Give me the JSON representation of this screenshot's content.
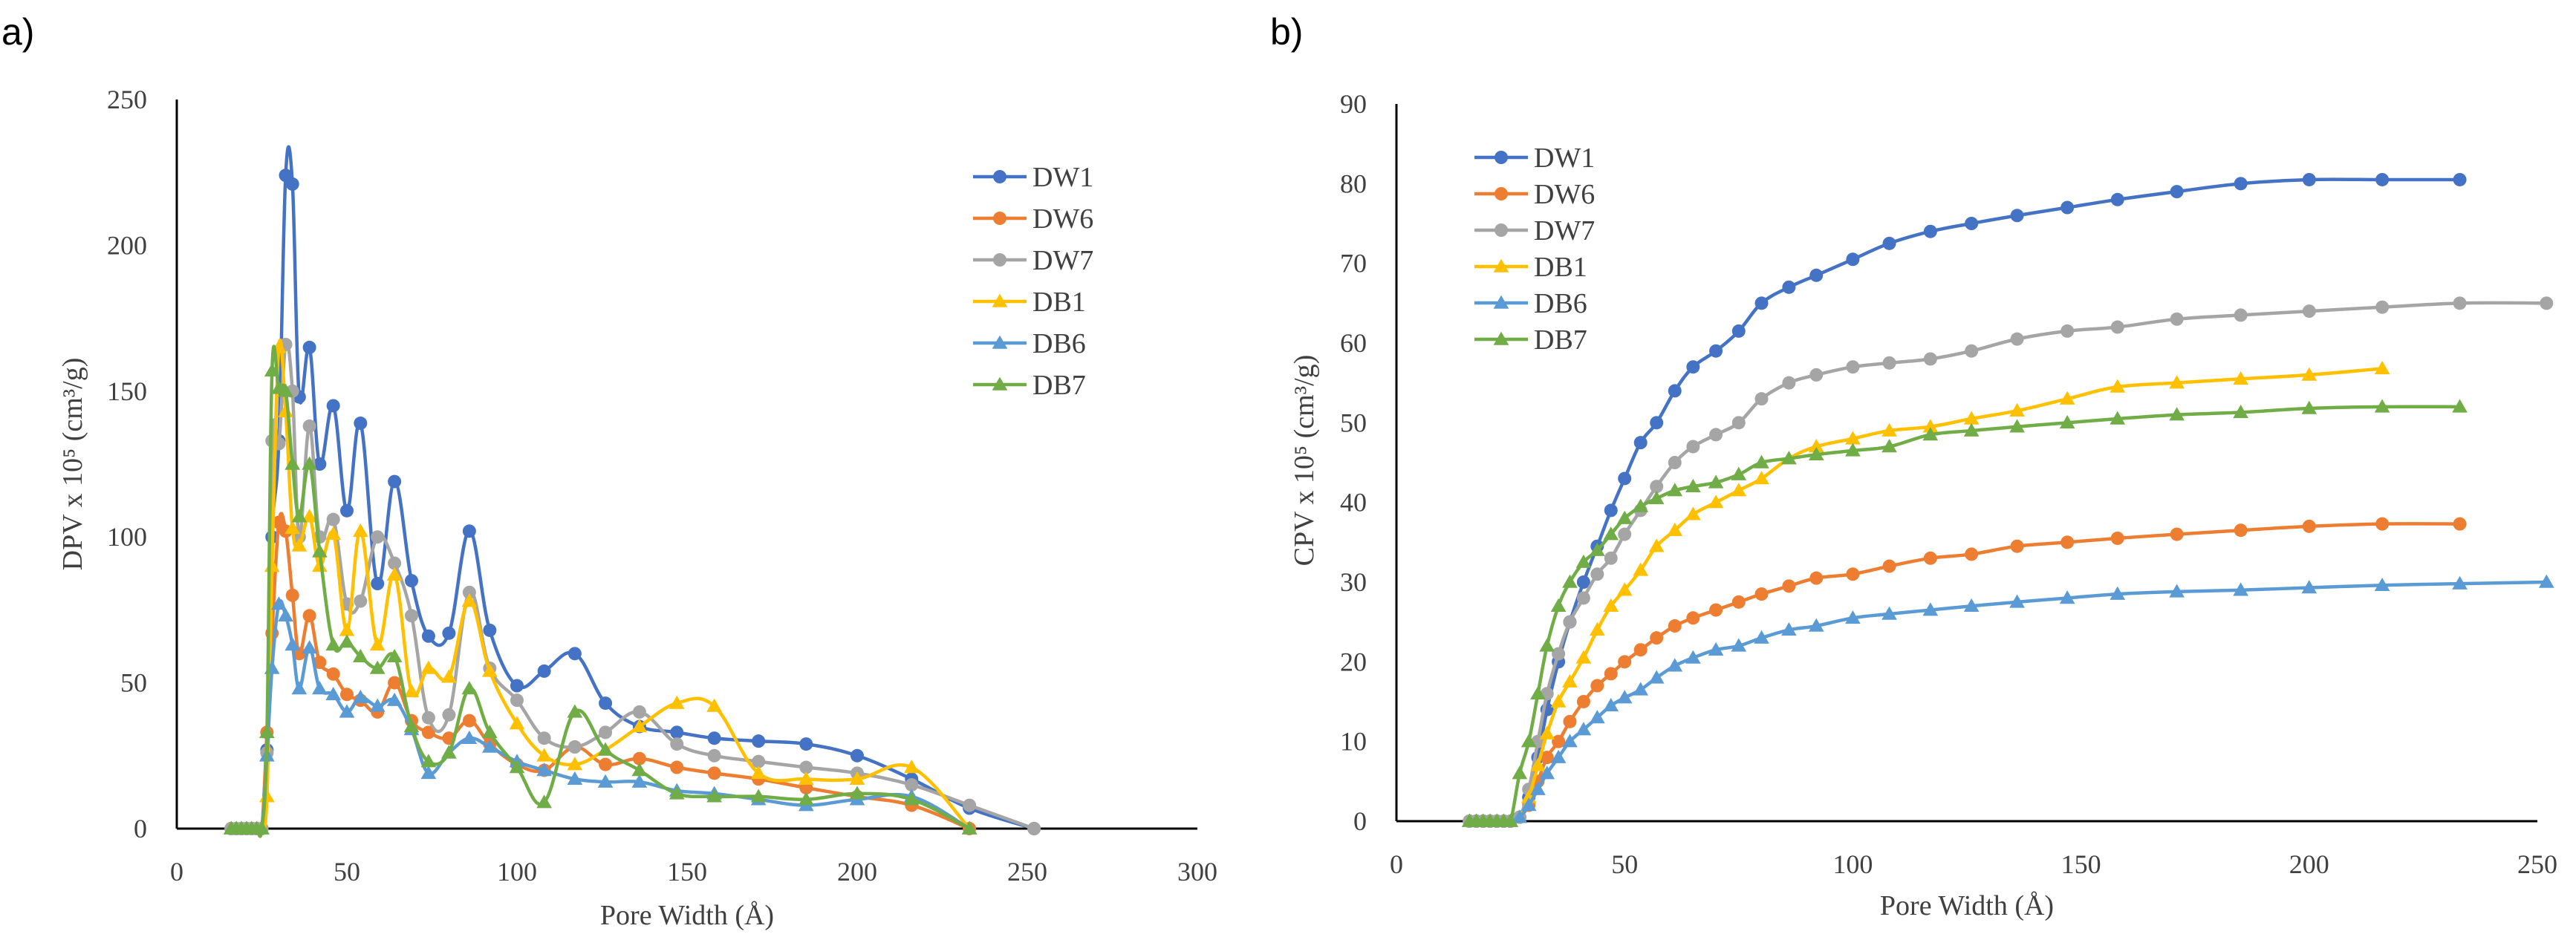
{
  "chart_data": [
    {
      "panel_label": "a)",
      "type": "line",
      "xlabel": "Pore Width (Å)",
      "ylabel": "DPV x 10⁵ (cm³/g)",
      "xlim": [
        0,
        300
      ],
      "ylim": [
        0,
        250
      ],
      "xticks": [
        "0",
        "50",
        "100",
        "150",
        "200",
        "250",
        "300"
      ],
      "yticks": [
        "0",
        "50",
        "100",
        "150",
        "200",
        "250"
      ],
      "grid": false,
      "legend_position": "top-right",
      "series": [
        {
          "name": "DW1",
          "color": "#4472C4",
          "marker": "circle",
          "x": [
            16,
            17.5,
            19,
            20.5,
            22,
            23.5,
            25,
            26.5,
            28,
            30,
            32,
            34,
            36,
            39,
            42,
            46,
            50,
            54,
            59,
            64,
            69,
            74,
            80,
            86,
            92,
            100,
            108,
            117,
            126,
            136,
            147,
            158,
            171,
            185,
            200,
            216,
            233,
            252
          ],
          "y": [
            0,
            0,
            0,
            0,
            0,
            0,
            0,
            27,
            100,
            133,
            224,
            221,
            148,
            165,
            125,
            145,
            109,
            139,
            84,
            119,
            85,
            66,
            67,
            102,
            68,
            49,
            54,
            60,
            43,
            35,
            33,
            31,
            30,
            29,
            25,
            17,
            7,
            0
          ]
        },
        {
          "name": "DW6",
          "color": "#ED7D31",
          "marker": "circle",
          "x": [
            16,
            17.5,
            19,
            20.5,
            22,
            23.5,
            25,
            26.5,
            28,
            30,
            32,
            34,
            36,
            39,
            42,
            46,
            50,
            54,
            59,
            64,
            69,
            74,
            80,
            86,
            92,
            100,
            108,
            117,
            126,
            136,
            147,
            158,
            171,
            185,
            200,
            216,
            233
          ],
          "y": [
            0,
            0,
            0,
            0,
            0,
            0,
            0,
            33,
            67,
            105,
            102,
            80,
            60,
            73,
            57,
            53,
            46,
            44,
            40,
            50,
            37,
            33,
            31,
            37,
            29,
            22,
            20,
            28,
            22,
            24,
            21,
            19,
            17,
            14,
            11,
            8,
            0
          ]
        },
        {
          "name": "DW7",
          "color": "#A5A5A5",
          "marker": "circle",
          "x": [
            16,
            17.5,
            19,
            20.5,
            22,
            23.5,
            25,
            26.5,
            28,
            30,
            32,
            34,
            36,
            39,
            42,
            46,
            50,
            54,
            59,
            64,
            69,
            74,
            80,
            86,
            92,
            100,
            108,
            117,
            126,
            136,
            147,
            158,
            171,
            185,
            200,
            216,
            233,
            252
          ],
          "y": [
            0,
            0,
            0,
            0,
            0,
            0,
            0,
            26,
            133,
            132,
            166,
            150,
            100,
            138,
            100,
            106,
            77,
            78,
            100,
            91,
            73,
            38,
            39,
            81,
            55,
            44,
            31,
            28,
            33,
            40,
            29,
            25,
            23,
            21,
            19,
            15,
            8,
            0
          ]
        },
        {
          "name": "DB1",
          "color": "#FFC000",
          "marker": "triangle",
          "x": [
            16,
            17.5,
            19,
            20.5,
            22,
            23.5,
            25,
            26.5,
            28,
            30,
            32,
            34,
            36,
            39,
            42,
            46,
            50,
            54,
            59,
            64,
            69,
            74,
            80,
            86,
            92,
            100,
            108,
            117,
            126,
            136,
            147,
            158,
            171,
            185,
            200,
            216,
            233
          ],
          "y": [
            0,
            0,
            0,
            0,
            0,
            0,
            0,
            11,
            90,
            165,
            143,
            103,
            97,
            107,
            90,
            101,
            68,
            102,
            63,
            87,
            47,
            55,
            52,
            78,
            54,
            36,
            25,
            22,
            27,
            35,
            43,
            42,
            19,
            17,
            17,
            21,
            0
          ]
        },
        {
          "name": "DB6",
          "color": "#5B9BD5",
          "marker": "triangle",
          "x": [
            16,
            17.5,
            19,
            20.5,
            22,
            23.5,
            25,
            26.5,
            28,
            30,
            32,
            34,
            36,
            39,
            42,
            46,
            50,
            54,
            59,
            64,
            69,
            74,
            80,
            86,
            92,
            100,
            108,
            117,
            126,
            136,
            147,
            158,
            171,
            185,
            200,
            216,
            233
          ],
          "y": [
            0,
            0,
            0,
            0,
            0,
            0,
            0,
            25,
            55,
            77,
            73,
            63,
            48,
            62,
            48,
            46,
            40,
            45,
            42,
            44,
            34,
            19,
            26,
            31,
            28,
            23,
            20,
            17,
            16,
            16,
            13,
            12,
            10,
            8,
            10,
            11,
            0
          ]
        },
        {
          "name": "DB7",
          "color": "#70AD47",
          "marker": "triangle",
          "x": [
            16,
            17.5,
            19,
            20.5,
            22,
            23.5,
            25,
            26.5,
            28,
            30,
            32,
            34,
            36,
            39,
            42,
            46,
            50,
            54,
            59,
            64,
            69,
            74,
            80,
            86,
            92,
            100,
            108,
            117,
            126,
            136,
            147,
            158,
            171,
            185,
            200,
            216,
            233
          ],
          "y": [
            0,
            0,
            0,
            0,
            0,
            0,
            0,
            33,
            157,
            151,
            150,
            125,
            107,
            125,
            95,
            63,
            64,
            59,
            55,
            59,
            35,
            23,
            26,
            48,
            33,
            21,
            9,
            40,
            27,
            20,
            12,
            11,
            11,
            10,
            12,
            10,
            0
          ]
        }
      ]
    },
    {
      "panel_label": "b)",
      "type": "line",
      "xlabel": "Pore Width (Å)",
      "ylabel": "CPV x 10⁵ (cm³/g)",
      "xlim": [
        0,
        250
      ],
      "ylim": [
        0,
        90
      ],
      "xticks": [
        "0",
        "50",
        "100",
        "150",
        "200",
        "250"
      ],
      "yticks": [
        "0",
        "10",
        "20",
        "30",
        "40",
        "50",
        "60",
        "70",
        "80",
        "90"
      ],
      "grid": false,
      "legend_position": "top-left",
      "series": [
        {
          "name": "DW1",
          "color": "#4472C4",
          "marker": "circle",
          "x": [
            16,
            17.5,
            19,
            20.5,
            22,
            23.5,
            25,
            27,
            29,
            31,
            33,
            35.5,
            38,
            41,
            44,
            47,
            50,
            53.5,
            57,
            61,
            65,
            70,
            75,
            80,
            86,
            92,
            100,
            108,
            117,
            126,
            136,
            147,
            158,
            171,
            185,
            200,
            216,
            233
          ],
          "y": [
            0,
            0,
            0,
            0,
            0,
            0,
            0,
            0.5,
            3,
            8,
            14,
            20,
            25,
            30,
            34.5,
            39,
            43,
            47.5,
            50,
            54,
            57,
            59,
            61.5,
            65,
            67,
            68.5,
            70.5,
            72.5,
            74,
            75,
            76,
            77,
            78,
            79,
            80,
            80.5,
            80.5,
            80.5
          ]
        },
        {
          "name": "DW6",
          "color": "#ED7D31",
          "marker": "circle",
          "x": [
            16,
            17.5,
            19,
            20.5,
            22,
            23.5,
            25,
            27,
            29,
            31,
            33,
            35.5,
            38,
            41,
            44,
            47,
            50,
            53.5,
            57,
            61,
            65,
            70,
            75,
            80,
            86,
            92,
            100,
            108,
            117,
            126,
            136,
            147,
            158,
            171,
            185,
            200,
            216,
            233
          ],
          "y": [
            0,
            0,
            0,
            0,
            0,
            0,
            0,
            0.5,
            2,
            5,
            8,
            10,
            12.5,
            15,
            17,
            18.5,
            20,
            21.5,
            23,
            24.5,
            25.5,
            26.5,
            27.5,
            28.5,
            29.5,
            30.5,
            31,
            32,
            33,
            33.5,
            34.5,
            35,
            35.5,
            36,
            36.5,
            37,
            37.3,
            37.3
          ]
        },
        {
          "name": "DW7",
          "color": "#A5A5A5",
          "marker": "circle",
          "x": [
            16,
            17.5,
            19,
            20.5,
            22,
            23.5,
            25,
            27,
            29,
            31,
            33,
            35.5,
            38,
            41,
            44,
            47,
            50,
            53.5,
            57,
            61,
            65,
            70,
            75,
            80,
            86,
            92,
            100,
            108,
            117,
            126,
            136,
            147,
            158,
            171,
            185,
            200,
            216,
            233,
            252
          ],
          "y": [
            0,
            0,
            0,
            0,
            0,
            0,
            0,
            0.5,
            4,
            10,
            16,
            21,
            25,
            28,
            31,
            33,
            36,
            39,
            42,
            45,
            47,
            48.5,
            50,
            53,
            55,
            56,
            57,
            57.5,
            58,
            59,
            60.5,
            61.5,
            62,
            63,
            63.5,
            64,
            64.5,
            65,
            65
          ]
        },
        {
          "name": "DB1",
          "color": "#FFC000",
          "marker": "triangle",
          "x": [
            16,
            17.5,
            19,
            20.5,
            22,
            23.5,
            25,
            27,
            29,
            31,
            33,
            35.5,
            38,
            41,
            44,
            47,
            50,
            53.5,
            57,
            61,
            65,
            70,
            75,
            80,
            86,
            92,
            100,
            108,
            117,
            126,
            136,
            147,
            158,
            171,
            185,
            200,
            216
          ],
          "y": [
            0,
            0,
            0,
            0,
            0,
            0,
            0,
            0.5,
            3,
            7,
            11,
            15,
            17.5,
            20.5,
            24,
            27,
            29,
            31.5,
            34.5,
            36.5,
            38.5,
            40,
            41.5,
            43,
            45.5,
            47,
            48,
            49,
            49.5,
            50.5,
            51.5,
            53,
            54.5,
            55,
            55.5,
            56,
            56.8
          ]
        },
        {
          "name": "DB6",
          "color": "#5B9BD5",
          "marker": "triangle",
          "x": [
            16,
            17.5,
            19,
            20.5,
            22,
            23.5,
            25,
            27,
            29,
            31,
            33,
            35.5,
            38,
            41,
            44,
            47,
            50,
            53.5,
            57,
            61,
            65,
            70,
            75,
            80,
            86,
            92,
            100,
            108,
            117,
            126,
            136,
            147,
            158,
            171,
            185,
            200,
            216,
            233,
            252
          ],
          "y": [
            0,
            0,
            0,
            0,
            0,
            0,
            0,
            0.5,
            2,
            4,
            6,
            8,
            10,
            11.5,
            13,
            14.5,
            15.5,
            16.5,
            18,
            19.5,
            20.5,
            21.5,
            22,
            23,
            24,
            24.5,
            25.5,
            26,
            26.5,
            27,
            27.5,
            28,
            28.5,
            28.8,
            29,
            29.3,
            29.6,
            29.8,
            30
          ]
        },
        {
          "name": "DB7",
          "color": "#70AD47",
          "marker": "triangle",
          "x": [
            16,
            17.5,
            19,
            20.5,
            22,
            23.5,
            25,
            27,
            29,
            31,
            33,
            35.5,
            38,
            41,
            44,
            47,
            50,
            53.5,
            57,
            61,
            65,
            70,
            75,
            80,
            86,
            92,
            100,
            108,
            117,
            126,
            136,
            147,
            158,
            171,
            185,
            200,
            216,
            233
          ],
          "y": [
            0,
            0,
            0,
            0,
            0,
            0,
            0,
            6,
            10,
            16,
            22,
            27,
            30,
            32.5,
            34,
            36,
            38,
            39.5,
            40.5,
            41.5,
            42,
            42.5,
            43.5,
            45,
            45.5,
            46,
            46.5,
            47,
            48.5,
            49,
            49.5,
            50,
            50.5,
            51,
            51.3,
            51.8,
            52,
            52
          ]
        }
      ]
    }
  ]
}
